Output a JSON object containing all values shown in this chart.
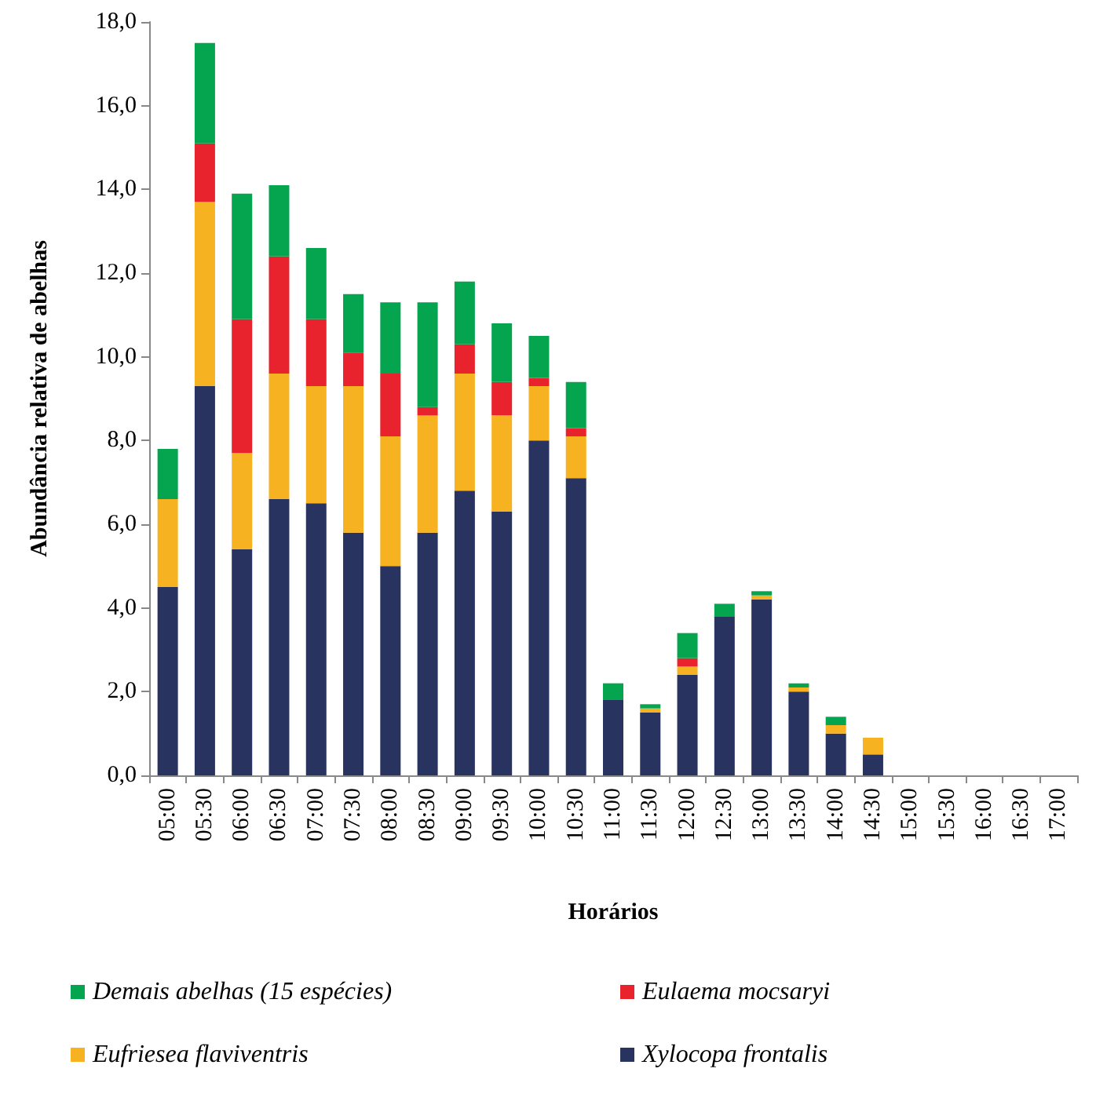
{
  "chart_data": {
    "type": "bar",
    "stacked": true,
    "xlabel": "Horários",
    "ylabel": "Abundância relativa de abelhas",
    "categories": [
      "05:00",
      "05:30",
      "06:00",
      "06:30",
      "07:00",
      "07:30",
      "08:00",
      "08:30",
      "09:00",
      "09:30",
      "10:00",
      "10:30",
      "11:00",
      "11:30",
      "12:00",
      "12:30",
      "13:00",
      "13:30",
      "14:00",
      "14:30",
      "15:00",
      "15:30",
      "16:00",
      "16:30",
      "17:00"
    ],
    "ylim": [
      0,
      18
    ],
    "yticks": [
      {
        "value": 0,
        "label": "0,0"
      },
      {
        "value": 2,
        "label": "2,0"
      },
      {
        "value": 4,
        "label": "4,0"
      },
      {
        "value": 6,
        "label": "6,0"
      },
      {
        "value": 8,
        "label": "8,0"
      },
      {
        "value": 10,
        "label": "10,0"
      },
      {
        "value": 12,
        "label": "12,0"
      },
      {
        "value": 14,
        "label": "14,0"
      },
      {
        "value": 16,
        "label": "16,0"
      },
      {
        "value": 18,
        "label": "18,0"
      }
    ],
    "grid": false,
    "legend": "bottom",
    "series": [
      {
        "name": "Xylocopa frontalis",
        "color": "#283360",
        "values": [
          4.5,
          9.3,
          5.4,
          6.6,
          6.5,
          5.8,
          5.0,
          5.8,
          6.8,
          6.3,
          8.0,
          7.1,
          1.8,
          1.5,
          2.4,
          3.8,
          4.2,
          2.0,
          1.0,
          0.5,
          0,
          0,
          0,
          0,
          0
        ]
      },
      {
        "name": "Eufriesea flaviventris",
        "color": "#f6b221",
        "values": [
          2.1,
          4.4,
          2.3,
          3.0,
          2.8,
          3.5,
          3.1,
          2.8,
          2.8,
          2.3,
          1.3,
          1.0,
          0,
          0.1,
          0.2,
          0,
          0.1,
          0.1,
          0.2,
          0.4,
          0,
          0,
          0,
          0,
          0
        ]
      },
      {
        "name": "Eulaema mocsaryi",
        "color": "#e8232d",
        "values": [
          0,
          1.4,
          3.2,
          2.8,
          1.6,
          0.8,
          1.5,
          0.2,
          0.7,
          0.8,
          0.2,
          0.2,
          0,
          0,
          0.2,
          0,
          0,
          0,
          0,
          0,
          0,
          0,
          0,
          0,
          0
        ]
      },
      {
        "name": "Demais abelhas (15 espécies)",
        "color": "#05a54f",
        "values": [
          1.2,
          2.4,
          3.0,
          1.7,
          1.7,
          1.4,
          1.7,
          2.5,
          1.5,
          1.4,
          1.0,
          1.1,
          0.4,
          0.1,
          0.6,
          0.3,
          0.1,
          0.1,
          0.2,
          0,
          0,
          0,
          0,
          0,
          0
        ]
      }
    ]
  }
}
